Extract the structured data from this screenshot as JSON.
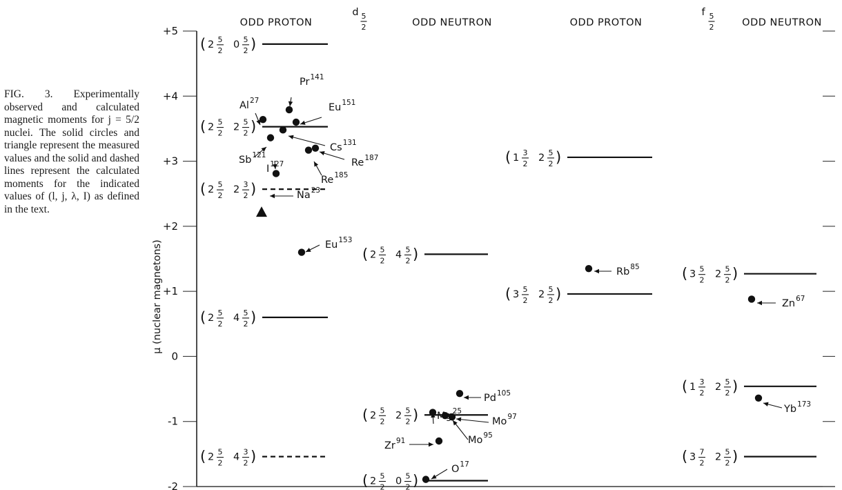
{
  "caption": {
    "fig_label": "FIG. 3.",
    "text": "Experimentally observed and calculated magnetic moments for j = 5/2 nuclei. The solid circles and triangle represent the measured values and the solid and dashed lines represent the calculated moments for the indicated values of (l, j, λ, I) as defined in the text."
  },
  "chart_data": {
    "type": "scatter",
    "ylabel": "μ (nuclear magnetons)",
    "ylim": [
      -2,
      5
    ],
    "y_ticks": [
      "+5",
      "+4",
      "+3",
      "+2",
      "+1",
      "0",
      "-1",
      "-2"
    ],
    "grid": false,
    "sections": [
      {
        "header": "ODD PROTON",
        "sub_label": {
          "base": "d",
          "sub_num": "5",
          "sub_den": "2"
        },
        "calculated": [
          {
            "state": {
              "a": "2",
              "b_num": "5",
              "b_den": "2",
              "c": "0",
              "d_num": "5",
              "d_den": "2"
            },
            "value": 4.8,
            "style": "solid"
          },
          {
            "state": {
              "a": "2",
              "b_num": "5",
              "b_den": "2",
              "c": "2",
              "d_num": "5",
              "d_den": "2"
            },
            "value": 3.53,
            "style": "solid"
          },
          {
            "state": {
              "a": "2",
              "b_num": "5",
              "b_den": "2",
              "c": "2",
              "d_num": "3",
              "d_den": "2"
            },
            "value": 2.57,
            "style": "dashed"
          },
          {
            "state": {
              "a": "2",
              "b_num": "5",
              "b_den": "2",
              "c": "4",
              "d_num": "5",
              "d_den": "2"
            },
            "value": 0.6,
            "style": "solid"
          },
          {
            "state": {
              "a": "2",
              "b_num": "5",
              "b_den": "2",
              "c": "4",
              "d_num": "3",
              "d_den": "2"
            },
            "value": -1.54,
            "style": "dashed"
          }
        ],
        "measured": [
          {
            "nucleus": "Al",
            "mass": "27",
            "value": 3.64,
            "marker": "circle"
          },
          {
            "nucleus": "Pr",
            "mass": "141",
            "value": 3.79,
            "marker": "circle"
          },
          {
            "nucleus": "Eu",
            "mass": "151",
            "value": 3.6,
            "marker": "circle"
          },
          {
            "nucleus": "Cs",
            "mass": "131",
            "value": 3.48,
            "marker": "circle"
          },
          {
            "nucleus": "Sb",
            "mass": "121",
            "value": 3.36,
            "marker": "circle"
          },
          {
            "nucleus": "I",
            "mass": "127",
            "value": 2.81,
            "marker": "circle"
          },
          {
            "nucleus": "Re",
            "mass": "187",
            "value": 3.2,
            "marker": "circle"
          },
          {
            "nucleus": "Re",
            "mass": "185",
            "value": 3.17,
            "marker": "circle"
          },
          {
            "nucleus": "Na",
            "mass": "23",
            "value": 2.22,
            "marker": "triangle"
          },
          {
            "nucleus": "Eu",
            "mass": "153",
            "value": 1.6,
            "marker": "circle"
          }
        ]
      },
      {
        "header": "ODD NEUTRON",
        "calculated": [
          {
            "state": {
              "a": "2",
              "b_num": "5",
              "b_den": "2",
              "c": "4",
              "d_num": "5",
              "d_den": "2"
            },
            "value": 1.57,
            "style": "solid"
          },
          {
            "state": {
              "a": "2",
              "b_num": "5",
              "b_den": "2",
              "c": "2",
              "d_num": "5",
              "d_den": "2"
            },
            "value": -0.9,
            "style": "solid"
          },
          {
            "state": {
              "a": "2",
              "b_num": "5",
              "b_den": "2",
              "c": "0",
              "d_num": "5",
              "d_den": "2"
            },
            "value": -1.91,
            "style": "solid"
          }
        ],
        "measured": [
          {
            "nucleus": "Mg",
            "mass": "25",
            "value": -0.86,
            "marker": "circle"
          },
          {
            "nucleus": "Pd",
            "mass": "105",
            "value": -0.57,
            "marker": "circle"
          },
          {
            "nucleus": "Mo",
            "mass": "97",
            "value": -0.93,
            "marker": "circle"
          },
          {
            "nucleus": "Mo",
            "mass": "95",
            "value": -0.91,
            "marker": "circle"
          },
          {
            "nucleus": "Zr",
            "mass": "91",
            "value": -1.3,
            "marker": "circle"
          },
          {
            "nucleus": "O",
            "mass": "17",
            "value": -1.89,
            "marker": "circle"
          }
        ]
      },
      {
        "header": "ODD PROTON",
        "sub_label": {
          "base": "f",
          "sub_num": "5",
          "sub_den": "2"
        },
        "calculated": [
          {
            "state": {
              "a": "1",
              "b_num": "3",
              "b_den": "2",
              "c": "2",
              "d_num": "5",
              "d_den": "2"
            },
            "value": 3.06,
            "style": "solid"
          },
          {
            "state": {
              "a": "3",
              "b_num": "5",
              "b_den": "2",
              "c": "2",
              "d_num": "5",
              "d_den": "2"
            },
            "value": 0.96,
            "style": "solid"
          }
        ],
        "measured": [
          {
            "nucleus": "Rb",
            "mass": "85",
            "value": 1.35,
            "marker": "circle"
          }
        ]
      },
      {
        "header": "ODD NEUTRON",
        "calculated": [
          {
            "state": {
              "a": "3",
              "b_num": "5",
              "b_den": "2",
              "c": "2",
              "d_num": "5",
              "d_den": "2"
            },
            "value": 1.27,
            "style": "solid"
          },
          {
            "state": {
              "a": "1",
              "b_num": "3",
              "b_den": "2",
              "c": "2",
              "d_num": "5",
              "d_den": "2"
            },
            "value": -0.46,
            "style": "solid"
          },
          {
            "state": {
              "a": "3",
              "b_num": "7",
              "b_den": "2",
              "c": "2",
              "d_num": "5",
              "d_den": "2"
            },
            "value": -1.54,
            "style": "solid"
          }
        ],
        "measured": [
          {
            "nucleus": "Zn",
            "mass": "67",
            "value": 0.88,
            "marker": "circle"
          },
          {
            "nucleus": "Yb",
            "mass": "173",
            "value": -0.64,
            "marker": "circle"
          }
        ]
      }
    ]
  }
}
